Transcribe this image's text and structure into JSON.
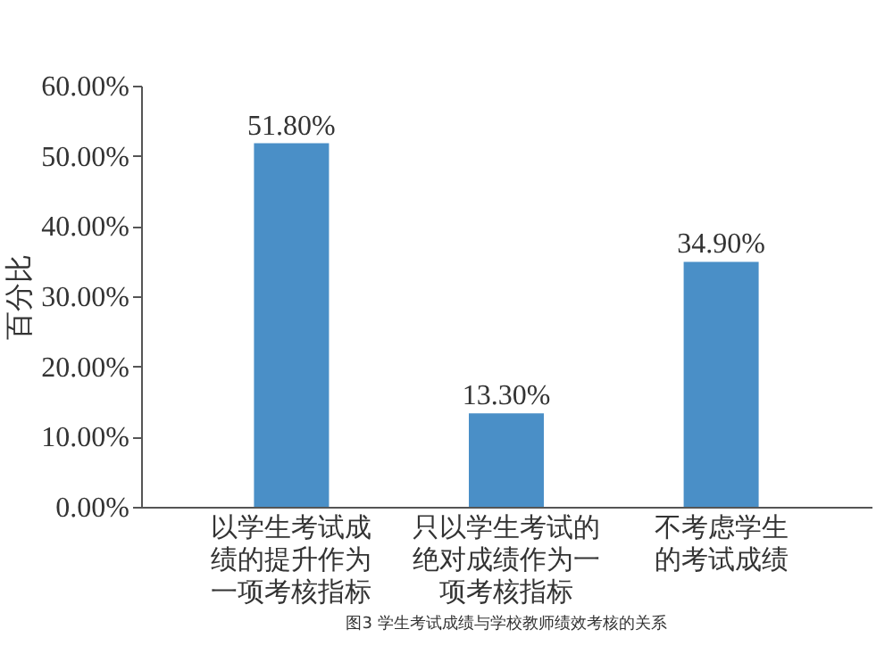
{
  "chart_data": {
    "type": "bar",
    "ylabel": "百分比",
    "categories": [
      "以学生考试成绩的提升作为一项考核指标",
      "只以学生考试的绝对成绩作为一项考核指标",
      "不考虑学生的考试成绩"
    ],
    "values": [
      51.8,
      13.3,
      34.9
    ],
    "value_labels": [
      "51.80%",
      "13.30%",
      "34.90%"
    ],
    "color": "#4a8fc7",
    "ylim": [
      0,
      60
    ],
    "yticks": [
      {
        "value": 0,
        "label": "0.00%"
      },
      {
        "value": 10,
        "label": "10.00%"
      },
      {
        "value": 20,
        "label": "20.00%"
      },
      {
        "value": 30,
        "label": "30.00%"
      },
      {
        "value": 40,
        "label": "40.00%"
      },
      {
        "value": 50,
        "label": "50.00%"
      },
      {
        "value": 60,
        "label": "60.00%"
      }
    ],
    "annotations": [
      "图3 学生考试成绩与学校教师绩效考核的关系"
    ],
    "grid": false
  }
}
